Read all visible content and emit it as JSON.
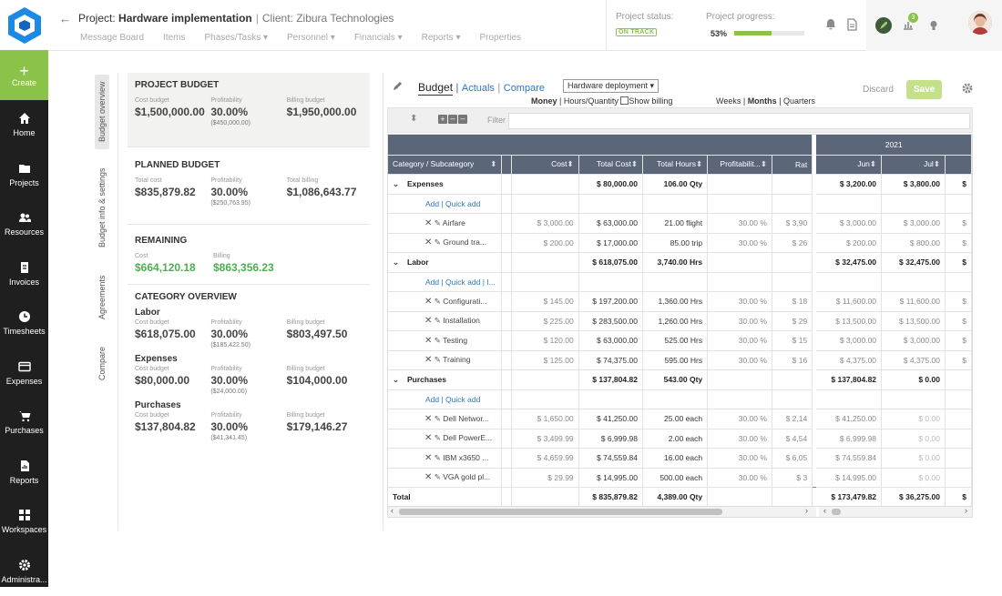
{
  "nav": {
    "create": "Create",
    "items": [
      {
        "label": "Home",
        "icon": "home-icon"
      },
      {
        "label": "Projects",
        "icon": "projects-icon"
      },
      {
        "label": "Resources",
        "icon": "resources-icon"
      },
      {
        "label": "Invoices",
        "icon": "invoices-icon"
      },
      {
        "label": "Timesheets",
        "icon": "clock-icon"
      },
      {
        "label": "Expenses",
        "icon": "expenses-icon"
      },
      {
        "label": "Purchases",
        "icon": "cart-icon"
      },
      {
        "label": "Reports",
        "icon": "reports-icon"
      },
      {
        "label": "Workspaces",
        "icon": "workspaces-icon"
      },
      {
        "label": "Administra...",
        "icon": "gear-icon"
      }
    ]
  },
  "header": {
    "project_prefix": "Project:",
    "project_name": "Hardware implementation",
    "client": "Client: Zibura Technologies",
    "tabs": [
      "Message Board",
      "Items",
      "Phases/Tasks ▾",
      "Personnel ▾",
      "Financials ▾",
      "Reports ▾",
      "Properties"
    ],
    "status_label": "Project status:",
    "status": "ON TRACK",
    "progress_label": "Project progress:",
    "progress": "53%",
    "progress_value": 0.53,
    "notif_count": "3"
  },
  "vtabs": [
    "Budget overview",
    "Budget info & settings",
    "Agreements",
    "Compare"
  ],
  "summary": {
    "project_budget": {
      "title": "PROJECT BUDGET",
      "cols": [
        {
          "l": "Cost budget",
          "v": "$1,500,000.00"
        },
        {
          "l": "Profitability",
          "v": "30.00%",
          "s": "($450,000.00)"
        },
        {
          "l": "Billing budget",
          "v": "$1,950,000.00"
        }
      ]
    },
    "planned": {
      "title": "PLANNED BUDGET",
      "cols": [
        {
          "l": "Total cost",
          "v": "$835,879.82"
        },
        {
          "l": "Profitability",
          "v": "30.00%",
          "s": "($250,763.95)"
        },
        {
          "l": "Total billing",
          "v": "$1,086,643.77"
        }
      ]
    },
    "remaining": {
      "title": "REMAINING",
      "cols": [
        {
          "l": "Cost",
          "v": "$664,120.18"
        },
        {
          "l": "Billing",
          "v": "$863,356.23"
        }
      ]
    },
    "category": {
      "title": "CATEGORY OVERVIEW",
      "groups": [
        {
          "name": "Labor",
          "cols": [
            {
              "l": "Cost budget",
              "v": "$618,075.00"
            },
            {
              "l": "Profitability",
              "v": "30.00%",
              "s": "($185,422.50)"
            },
            {
              "l": "Billing budget",
              "v": "$803,497.50"
            }
          ]
        },
        {
          "name": "Expenses",
          "cols": [
            {
              "l": "Cost budget",
              "v": "$80,000.00"
            },
            {
              "l": "Profitability",
              "v": "30.00%",
              "s": "($24,000.00)"
            },
            {
              "l": "Billing budget",
              "v": "$104,000.00"
            }
          ]
        },
        {
          "name": "Purchases",
          "cols": [
            {
              "l": "Cost budget",
              "v": "$137,804.82"
            },
            {
              "l": "Profitability",
              "v": "30.00%",
              "s": "($41,341.45)"
            },
            {
              "l": "Billing budget",
              "v": "$179,146.27"
            }
          ]
        }
      ]
    }
  },
  "grid": {
    "tab_budget": "Budget",
    "tab_actuals": "Actuals",
    "tab_compare": "Compare",
    "select": "Hardware deployment ▾",
    "mode_money": "Money",
    "mode_hours": "Hours/Quantity",
    "show_billing": "Show billing",
    "periods": [
      "Weeks",
      "Months",
      "Quarters"
    ],
    "discard": "Discard",
    "save": "Save",
    "filter": "Filter",
    "year": "2021",
    "columns": [
      "Category / Subcategory",
      "Cost",
      "Total Cost",
      "Total Hours",
      "Profitabilit...",
      "Rat",
      "Jun",
      "Jul"
    ],
    "rows": [
      {
        "t": "cat",
        "c": [
          "Expenses",
          "",
          "$ 80,000.00",
          "106.00 Qty",
          "",
          "",
          "$ 3,200.00",
          "$ 3,800.00",
          "$"
        ]
      },
      {
        "t": "add",
        "c": [
          "Add | Quick add"
        ]
      },
      {
        "t": "item",
        "c": [
          "Airfare",
          "$ 3,000.00",
          "$ 63,000.00",
          "21.00 flight",
          "30.00 %",
          "$ 3,90",
          "$ 3,000.00",
          "$ 3,000.00",
          "$"
        ]
      },
      {
        "t": "item",
        "c": [
          "Ground tra...",
          "$ 200.00",
          "$ 17,000.00",
          "85.00 trip",
          "30.00 %",
          "$ 26",
          "$ 200.00",
          "$ 800.00",
          "$"
        ]
      },
      {
        "t": "cat",
        "c": [
          "Labor",
          "",
          "$ 618,075.00",
          "3,740.00 Hrs",
          "",
          "",
          "$ 32,475.00",
          "$ 32,475.00",
          "$"
        ]
      },
      {
        "t": "add",
        "c": [
          "Add | Quick add | I..."
        ]
      },
      {
        "t": "item",
        "c": [
          "Configurati...",
          "$ 145.00",
          "$ 197,200.00",
          "1,360.00 Hrs",
          "30.00 %",
          "$ 18",
          "$ 11,600.00",
          "$ 11,600.00",
          "$"
        ]
      },
      {
        "t": "item",
        "c": [
          "Installation",
          "$ 225.00",
          "$ 283,500.00",
          "1,260.00 Hrs",
          "30.00 %",
          "$ 29",
          "$ 13,500.00",
          "$ 13,500.00",
          "$"
        ]
      },
      {
        "t": "item",
        "c": [
          "Testing",
          "$ 120.00",
          "$ 63,000.00",
          "525.00 Hrs",
          "30.00 %",
          "$ 15",
          "$ 3,000.00",
          "$ 3,000.00",
          "$"
        ]
      },
      {
        "t": "item",
        "c": [
          "Training",
          "$ 125.00",
          "$ 74,375.00",
          "595.00 Hrs",
          "30.00 %",
          "$ 16",
          "$ 4,375.00",
          "$ 4,375.00",
          "$"
        ]
      },
      {
        "t": "cat",
        "c": [
          "Purchases",
          "",
          "$ 137,804.82",
          "543.00 Qty",
          "",
          "",
          "$ 137,804.82",
          "$ 0.00",
          ""
        ]
      },
      {
        "t": "add",
        "c": [
          "Add | Quick add"
        ]
      },
      {
        "t": "item",
        "c": [
          "Dell Networ...",
          "$ 1,650.00",
          "$ 41,250.00",
          "25.00 each",
          "30.00 %",
          "$ 2,14",
          "$ 41,250.00",
          "$ 0.00",
          ""
        ]
      },
      {
        "t": "item",
        "c": [
          "Dell PowerE...",
          "$ 3,499.99",
          "$ 6,999.98",
          "2.00 each",
          "30.00 %",
          "$ 4,54",
          "$ 6,999.98",
          "$ 0.00",
          ""
        ]
      },
      {
        "t": "item",
        "c": [
          "IBM x3650 ...",
          "$ 4,659.99",
          "$ 74,559.84",
          "16.00 each",
          "30.00 %",
          "$ 6,05",
          "$ 74,559.84",
          "$ 0.00",
          ""
        ]
      },
      {
        "t": "item",
        "c": [
          "VGA gold pl...",
          "$ 29.99",
          "$ 14,995.00",
          "500.00 each",
          "30.00 %",
          "$ 3",
          "$ 14,995.00",
          "$ 0.00",
          ""
        ]
      },
      {
        "t": "tot",
        "c": [
          "Total",
          "",
          "$ 835,879.82",
          "4,389.00 Qty",
          "",
          "",
          "$ 173,479.82",
          "$ 36,275.00",
          "$"
        ]
      }
    ]
  }
}
